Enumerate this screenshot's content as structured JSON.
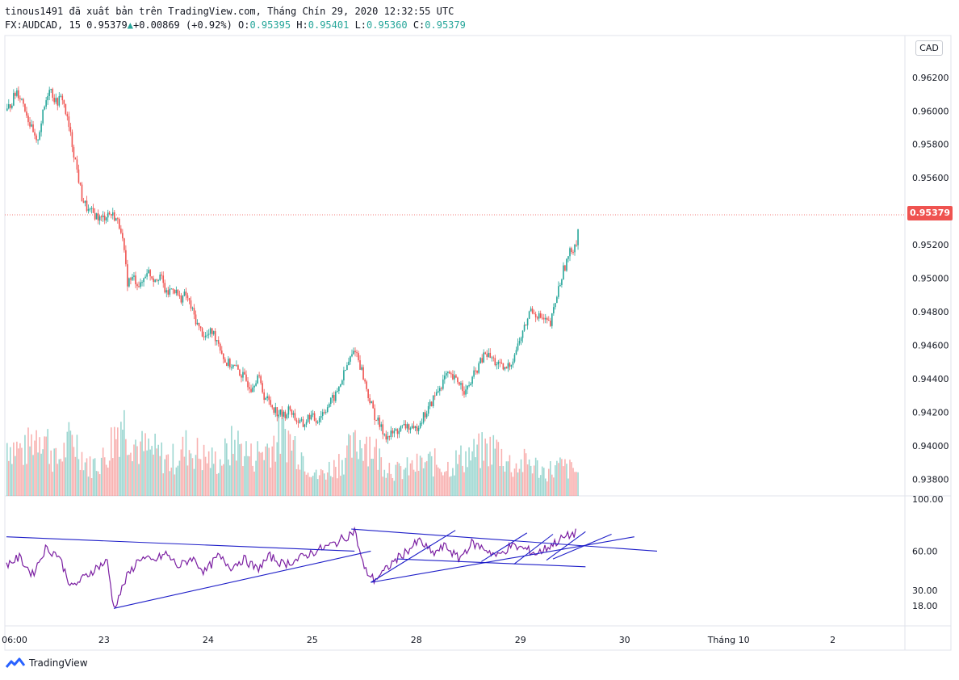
{
  "header": {
    "line1": "tinous1491 đã xuất bản trên TradingView.com, Tháng Chín 29, 2020 12:32:55 UTC",
    "symbol": "FX:AUDCAD, 15",
    "last": "0.95379",
    "change": "+0.00869 (+0.92%)",
    "o_label": "O:",
    "o_value": "0.95395",
    "h_label": "H:",
    "h_value": "0.95401",
    "l_label": "L:",
    "l_value": "0.95360",
    "c_label": "C:",
    "c_value": "0.95379"
  },
  "currency_badge": "CAD",
  "last_price_tag": "0.95379",
  "footer": {
    "brand": "TradingView"
  },
  "colors": {
    "up": "#26a69a",
    "down": "#ef5350",
    "rsi": "#7b1fa2",
    "trendline": "#1e1ec8",
    "price_line": "#ef5350"
  },
  "chart_data": {
    "type": "candlestick",
    "symbol": "FX:AUDCAD",
    "timeframe": "15",
    "price_axis": {
      "ticks": [
        "0.96200",
        "0.96000",
        "0.95800",
        "0.95600",
        "0.95200",
        "0.95000",
        "0.94800",
        "0.94600",
        "0.94400",
        "0.94200",
        "0.94000",
        "0.93800"
      ],
      "tick_values": [
        0.962,
        0.96,
        0.958,
        0.956,
        0.952,
        0.95,
        0.948,
        0.946,
        0.944,
        0.942,
        0.94,
        0.938
      ],
      "range": [
        0.937,
        0.9645
      ]
    },
    "rsi_axis": {
      "ticks": [
        "100.00",
        "60.00",
        "30.00",
        "18.00"
      ],
      "tick_values": [
        100,
        60,
        30,
        18
      ]
    },
    "time_axis": {
      "labels": [
        "06:00",
        "23",
        "24",
        "25",
        "28",
        "29",
        "30",
        "Tháng 10",
        "2"
      ]
    },
    "price_path": [
      [
        0,
        0.96
      ],
      [
        3,
        0.9612
      ],
      [
        5,
        0.9605
      ],
      [
        7,
        0.9592
      ],
      [
        9,
        0.958
      ],
      [
        11,
        0.9598
      ],
      [
        13,
        0.9615
      ],
      [
        15,
        0.9605
      ],
      [
        17,
        0.9608
      ],
      [
        19,
        0.959
      ],
      [
        21,
        0.957
      ],
      [
        23,
        0.9548
      ],
      [
        25,
        0.954
      ],
      [
        27,
        0.9538
      ],
      [
        29,
        0.9535
      ],
      [
        31,
        0.9539
      ],
      [
        33,
        0.9537
      ],
      [
        35,
        0.953
      ],
      [
        37,
        0.9498
      ],
      [
        39,
        0.95
      ],
      [
        41,
        0.9495
      ],
      [
        43,
        0.9505
      ],
      [
        45,
        0.95
      ],
      [
        47,
        0.9502
      ],
      [
        49,
        0.949
      ],
      [
        51,
        0.9495
      ],
      [
        53,
        0.9488
      ],
      [
        55,
        0.949
      ],
      [
        57,
        0.948
      ],
      [
        59,
        0.947
      ],
      [
        61,
        0.9465
      ],
      [
        63,
        0.9468
      ],
      [
        65,
        0.9462
      ],
      [
        67,
        0.945
      ],
      [
        69,
        0.9448
      ],
      [
        71,
        0.9445
      ],
      [
        73,
        0.944
      ],
      [
        75,
        0.9435
      ],
      [
        77,
        0.9442
      ],
      [
        79,
        0.943
      ],
      [
        81,
        0.9425
      ],
      [
        83,
        0.942
      ],
      [
        85,
        0.9418
      ],
      [
        87,
        0.9422
      ],
      [
        89,
        0.9415
      ],
      [
        91,
        0.9412
      ],
      [
        93,
        0.9418
      ],
      [
        95,
        0.9415
      ],
      [
        97,
        0.942
      ],
      [
        99,
        0.9425
      ],
      [
        101,
        0.943
      ],
      [
        103,
        0.944
      ],
      [
        105,
        0.945
      ],
      [
        107,
        0.9458
      ],
      [
        109,
        0.9445
      ],
      [
        111,
        0.943
      ],
      [
        113,
        0.9418
      ],
      [
        115,
        0.941
      ],
      [
        117,
        0.9405
      ],
      [
        119,
        0.9408
      ],
      [
        121,
        0.941
      ],
      [
        123,
        0.9412
      ],
      [
        125,
        0.9408
      ],
      [
        127,
        0.9415
      ],
      [
        129,
        0.942
      ],
      [
        131,
        0.9428
      ],
      [
        133,
        0.9435
      ],
      [
        135,
        0.9442
      ],
      [
        137,
        0.944
      ],
      [
        139,
        0.9438
      ],
      [
        141,
        0.9432
      ],
      [
        143,
        0.944
      ],
      [
        145,
        0.9448
      ],
      [
        147,
        0.9455
      ],
      [
        149,
        0.9452
      ],
      [
        151,
        0.9448
      ],
      [
        153,
        0.9445
      ],
      [
        155,
        0.945
      ],
      [
        157,
        0.946
      ],
      [
        159,
        0.947
      ],
      [
        161,
        0.9482
      ],
      [
        163,
        0.9478
      ],
      [
        165,
        0.9475
      ],
      [
        167,
        0.9472
      ],
      [
        169,
        0.949
      ],
      [
        171,
        0.9505
      ],
      [
        173,
        0.9515
      ],
      [
        175,
        0.9522
      ],
      [
        176,
        0.9538
      ]
    ],
    "volume_path": [
      [
        0,
        0.55
      ],
      [
        5,
        0.45
      ],
      [
        10,
        0.7
      ],
      [
        15,
        0.35
      ],
      [
        20,
        0.6
      ],
      [
        25,
        0.3
      ],
      [
        30,
        0.4
      ],
      [
        35,
        0.8
      ],
      [
        40,
        0.5
      ],
      [
        45,
        0.45
      ],
      [
        50,
        0.35
      ],
      [
        55,
        0.5
      ],
      [
        60,
        0.4
      ],
      [
        65,
        0.35
      ],
      [
        70,
        0.55
      ],
      [
        75,
        0.4
      ],
      [
        80,
        0.5
      ],
      [
        85,
        0.65
      ],
      [
        90,
        0.45
      ],
      [
        95,
        0.2
      ],
      [
        100,
        0.3
      ],
      [
        105,
        0.45
      ],
      [
        110,
        0.6
      ],
      [
        115,
        0.35
      ],
      [
        120,
        0.25
      ],
      [
        125,
        0.3
      ],
      [
        130,
        0.35
      ],
      [
        135,
        0.3
      ],
      [
        140,
        0.4
      ],
      [
        145,
        0.45
      ],
      [
        150,
        0.5
      ],
      [
        155,
        0.3
      ],
      [
        160,
        0.35
      ],
      [
        165,
        0.25
      ],
      [
        170,
        0.3
      ],
      [
        175,
        0.25
      ]
    ],
    "rsi_path": [
      [
        0,
        50
      ],
      [
        4,
        55
      ],
      [
        8,
        42
      ],
      [
        12,
        62
      ],
      [
        16,
        57
      ],
      [
        20,
        32
      ],
      [
        24,
        40
      ],
      [
        28,
        48
      ],
      [
        31,
        52
      ],
      [
        33,
        16
      ],
      [
        37,
        40
      ],
      [
        41,
        55
      ],
      [
        45,
        52
      ],
      [
        49,
        58
      ],
      [
        53,
        48
      ],
      [
        57,
        55
      ],
      [
        61,
        44
      ],
      [
        65,
        56
      ],
      [
        69,
        48
      ],
      [
        73,
        54
      ],
      [
        77,
        46
      ],
      [
        81,
        56
      ],
      [
        85,
        50
      ],
      [
        89,
        53
      ],
      [
        93,
        58
      ],
      [
        97,
        62
      ],
      [
        101,
        66
      ],
      [
        105,
        72
      ],
      [
        107,
        76
      ],
      [
        110,
        46
      ],
      [
        113,
        38
      ],
      [
        116,
        44
      ],
      [
        119,
        52
      ],
      [
        123,
        60
      ],
      [
        127,
        68
      ],
      [
        131,
        58
      ],
      [
        135,
        64
      ],
      [
        139,
        54
      ],
      [
        143,
        66
      ],
      [
        147,
        62
      ],
      [
        151,
        56
      ],
      [
        155,
        64
      ],
      [
        159,
        62
      ],
      [
        163,
        58
      ],
      [
        167,
        64
      ],
      [
        171,
        70
      ],
      [
        175,
        74
      ]
    ],
    "rsi_trendlines": [
      [
        [
          0,
          71
        ],
        [
          107,
          60
        ]
      ],
      [
        [
          33,
          16
        ],
        [
          112,
          60
        ]
      ],
      [
        [
          106,
          77
        ],
        [
          200,
          60
        ]
      ],
      [
        [
          112,
          36
        ],
        [
          193,
          71
        ]
      ],
      [
        [
          112,
          36
        ],
        [
          138,
          76
        ]
      ],
      [
        [
          120,
          54
        ],
        [
          178,
          48
        ]
      ],
      [
        [
          146,
          52
        ],
        [
          160,
          74
        ]
      ],
      [
        [
          156,
          50
        ],
        [
          168,
          73
        ]
      ],
      [
        [
          166,
          53
        ],
        [
          178,
          75
        ]
      ],
      [
        [
          168,
          54
        ],
        [
          186,
          73
        ]
      ]
    ]
  }
}
